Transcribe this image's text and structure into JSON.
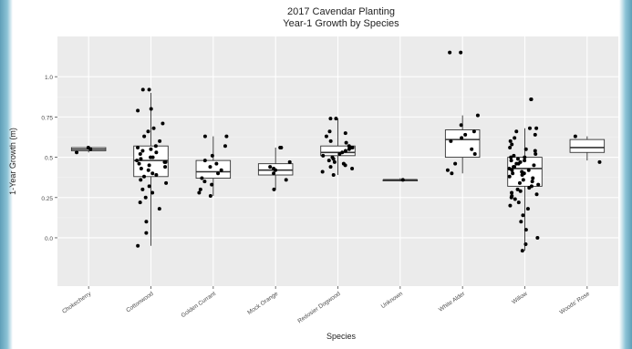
{
  "chart_data": {
    "type": "box",
    "title": "2017 Cavendar Planting",
    "subtitle": "Year-1 Growth by Species",
    "xlabel": "Species",
    "ylabel": "1-Year Growth (m)",
    "ylim": [
      -0.3,
      1.25
    ],
    "yticks": [
      0.0,
      0.25,
      0.5,
      0.75,
      1.0
    ],
    "ytick_labels": [
      "0.0",
      "0.25",
      "0.5",
      "0.75",
      "1.0"
    ],
    "grid": true,
    "categories": [
      "Chokecherry",
      "Cottonwood",
      "Golden Currant",
      "Mock Orange",
      "Redosier Dogwood",
      "Unknown",
      "White Alder",
      "Willow",
      "Woods' Rose"
    ],
    "boxes": [
      {
        "category": "Chokecherry",
        "min": 0.53,
        "q1": 0.54,
        "median": 0.55,
        "q3": 0.56,
        "max": 0.56
      },
      {
        "category": "Cottonwood",
        "min": -0.05,
        "q1": 0.38,
        "median": 0.48,
        "q3": 0.57,
        "max": 0.9
      },
      {
        "category": "Golden Currant",
        "min": 0.26,
        "q1": 0.37,
        "median": 0.41,
        "q3": 0.48,
        "max": 0.63
      },
      {
        "category": "Mock Orange",
        "min": 0.3,
        "q1": 0.39,
        "median": 0.42,
        "q3": 0.46,
        "max": 0.56
      },
      {
        "category": "Redosier Dogwood",
        "min": 0.39,
        "q1": 0.51,
        "median": 0.53,
        "q3": 0.57,
        "max": 0.74
      },
      {
        "category": "Unknown",
        "min": 0.35,
        "q1": 0.36,
        "median": 0.36,
        "q3": 0.36,
        "max": 0.37
      },
      {
        "category": "White Alder",
        "min": 0.4,
        "q1": 0.5,
        "median": 0.61,
        "q3": 0.67,
        "max": 0.76
      },
      {
        "category": "Willow",
        "min": -0.08,
        "q1": 0.32,
        "median": 0.43,
        "q3": 0.5,
        "max": 0.68
      },
      {
        "category": "Woods' Rose",
        "min": 0.48,
        "q1": 0.53,
        "median": 0.56,
        "q3": 0.61,
        "max": 0.63
      }
    ],
    "points": [
      {
        "category": "Chokecherry",
        "y": [
          0.56,
          0.55,
          0.53
        ]
      },
      {
        "category": "Cottonwood",
        "y": [
          0.92,
          0.92,
          0.8,
          0.79,
          0.71,
          0.68,
          0.66,
          0.63,
          0.6,
          0.57,
          0.56,
          0.55,
          0.54,
          0.53,
          0.52,
          0.5,
          0.5,
          0.49,
          0.48,
          0.47,
          0.47,
          0.46,
          0.45,
          0.44,
          0.43,
          0.42,
          0.4,
          0.39,
          0.38,
          0.36,
          0.34,
          0.32,
          0.3,
          0.28,
          0.25,
          0.22,
          0.18,
          0.1,
          0.03,
          -0.05
        ]
      },
      {
        "category": "Golden Currant",
        "y": [
          0.63,
          0.63,
          0.57,
          0.51,
          0.48,
          0.46,
          0.44,
          0.42,
          0.4,
          0.37,
          0.35,
          0.33,
          0.3,
          0.28,
          0.26
        ]
      },
      {
        "category": "Mock Orange",
        "y": [
          0.56,
          0.56,
          0.47,
          0.44,
          0.43,
          0.42,
          0.4,
          0.36,
          0.3
        ]
      },
      {
        "category": "Redosier Dogwood",
        "y": [
          0.74,
          0.74,
          0.66,
          0.65,
          0.63,
          0.6,
          0.59,
          0.57,
          0.56,
          0.56,
          0.55,
          0.54,
          0.53,
          0.52,
          0.51,
          0.5,
          0.49,
          0.48,
          0.47,
          0.46,
          0.45,
          0.44,
          0.43,
          0.41,
          0.39
        ]
      },
      {
        "category": "Unknown",
        "y": [
          0.36
        ]
      },
      {
        "category": "White Alder",
        "y": [
          1.15,
          1.15,
          0.76,
          0.7,
          0.66,
          0.64,
          0.62,
          0.6,
          0.55,
          0.52,
          0.46,
          0.42,
          0.4
        ]
      },
      {
        "category": "Willow",
        "y": [
          0.86,
          0.86,
          0.68,
          0.68,
          0.66,
          0.64,
          0.62,
          0.6,
          0.58,
          0.56,
          0.55,
          0.54,
          0.52,
          0.51,
          0.5,
          0.5,
          0.49,
          0.48,
          0.48,
          0.47,
          0.46,
          0.46,
          0.45,
          0.44,
          0.44,
          0.43,
          0.42,
          0.42,
          0.41,
          0.4,
          0.4,
          0.39,
          0.38,
          0.37,
          0.36,
          0.35,
          0.34,
          0.33,
          0.32,
          0.31,
          0.3,
          0.29,
          0.28,
          0.27,
          0.26,
          0.25,
          0.24,
          0.22,
          0.2,
          0.18,
          0.14,
          0.1,
          0.05,
          0.0,
          -0.04,
          -0.08
        ]
      },
      {
        "category": "Woods' Rose",
        "y": [
          0.63,
          0.47
        ]
      }
    ]
  },
  "colors": {
    "panel": "#ebebeb",
    "grid_major": "#ffffff",
    "grid_minor": "#f4f4f4",
    "box_fill": "#ffffff",
    "box_stroke": "#333333",
    "point": "#000000",
    "text": "#333333",
    "axis_text": "#4d4d4d"
  }
}
